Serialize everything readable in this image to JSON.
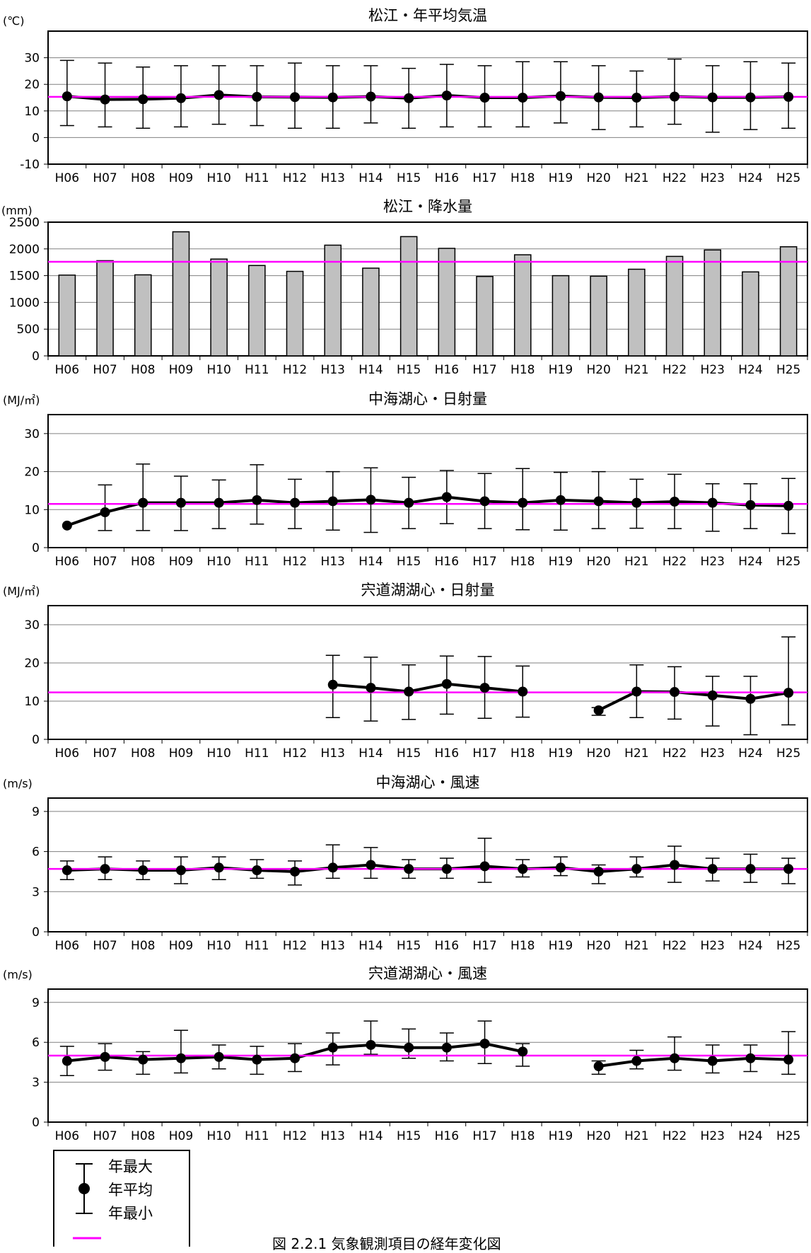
{
  "colors": {
    "reference_line": "#ff00ff",
    "bar_fill": "#c0c0c0",
    "series": "#000000",
    "grid": "#808080"
  },
  "legend": {
    "max_label": "年最大",
    "mean_label": "年平均",
    "min_label": "年最小"
  },
  "caption": {
    "text": "図 2.2.1 気象観測項目の経年変化図"
  },
  "chart_data": [
    {
      "type": "line",
      "title": "松江・年平均気温",
      "unit": "(℃)",
      "ylim": [
        -10,
        40
      ],
      "yticks": [
        -10,
        0,
        10,
        20,
        30
      ],
      "grid": true,
      "categories": [
        "H06",
        "H07",
        "H08",
        "H09",
        "H10",
        "H11",
        "H12",
        "H13",
        "H14",
        "H15",
        "H16",
        "H17",
        "H18",
        "H19",
        "H20",
        "H21",
        "H22",
        "H23",
        "H24",
        "H25"
      ],
      "mean": [
        15.5,
        14.3,
        14.4,
        14.8,
        16.0,
        15.3,
        15.2,
        15.1,
        15.4,
        14.8,
        15.8,
        15.0,
        15.0,
        15.6,
        15.1,
        15.0,
        15.4,
        15.1,
        15.1,
        15.3
      ],
      "max": [
        29,
        28,
        26.5,
        27,
        27,
        27,
        28,
        27,
        27,
        26,
        27.5,
        27,
        28.5,
        28.5,
        27,
        25,
        29.5,
        27,
        28.5,
        28
      ],
      "min": [
        4.5,
        4,
        3.5,
        4,
        5,
        4.5,
        3.5,
        3.5,
        5.5,
        3.5,
        4,
        4,
        4,
        5.5,
        3,
        4,
        5,
        2,
        3,
        3.5
      ],
      "reference": 15.3
    },
    {
      "type": "bar",
      "title": "松江・降水量",
      "unit": "(mm)",
      "ylim": [
        0,
        2500
      ],
      "yticks": [
        0,
        500,
        1000,
        1500,
        2000,
        2500
      ],
      "grid": true,
      "categories": [
        "H06",
        "H07",
        "H08",
        "H09",
        "H10",
        "H11",
        "H12",
        "H13",
        "H14",
        "H15",
        "H16",
        "H17",
        "H18",
        "H19",
        "H20",
        "H21",
        "H22",
        "H23",
        "H24",
        "H25"
      ],
      "values": [
        1510,
        1780,
        1515,
        2320,
        1810,
        1690,
        1580,
        2070,
        1640,
        2230,
        2010,
        1485,
        1890,
        1500,
        1490,
        1620,
        1860,
        1980,
        1570,
        2040
      ],
      "reference": 1760
    },
    {
      "type": "line",
      "title": "中海湖心・日射量",
      "unit": "(MJ/㎡)",
      "ylim": [
        0,
        35
      ],
      "yticks": [
        0,
        10,
        20,
        30
      ],
      "grid": true,
      "categories": [
        "H06",
        "H07",
        "H08",
        "H09",
        "H10",
        "H11",
        "H12",
        "H13",
        "H14",
        "H15",
        "H16",
        "H17",
        "H18",
        "H19",
        "H20",
        "H21",
        "H22",
        "H23",
        "H24",
        "H25"
      ],
      "mean": [
        5.8,
        9.3,
        11.8,
        11.8,
        11.8,
        12.5,
        11.8,
        12.2,
        12.6,
        11.8,
        13.3,
        12.2,
        11.8,
        12.5,
        12.2,
        11.8,
        12.1,
        11.8,
        11.2,
        11.0
      ],
      "max": [
        null,
        16.5,
        22,
        18.8,
        17.8,
        21.8,
        18,
        20,
        21,
        18.5,
        20.3,
        19.5,
        20.8,
        19.8,
        20,
        18,
        19.3,
        16.8,
        16.8,
        18.2
      ],
      "min": [
        null,
        4.5,
        4.5,
        4.5,
        5,
        6.2,
        5,
        4.6,
        4,
        5,
        6.3,
        5,
        4.7,
        4.6,
        5,
        5.1,
        5,
        4.3,
        5,
        3.7
      ],
      "reference": 11.5
    },
    {
      "type": "line",
      "title": "宍道湖湖心・日射量",
      "unit": "(MJ/㎡)",
      "ylim": [
        0,
        35
      ],
      "yticks": [
        0,
        10,
        20,
        30
      ],
      "grid": true,
      "categories": [
        "H06",
        "H07",
        "H08",
        "H09",
        "H10",
        "H11",
        "H12",
        "H13",
        "H14",
        "H15",
        "H16",
        "H17",
        "H18",
        "H19",
        "H20",
        "H21",
        "H22",
        "H23",
        "H24",
        "H25"
      ],
      "mean": [
        null,
        null,
        null,
        null,
        null,
        null,
        null,
        14.3,
        13.5,
        12.5,
        14.5,
        13.5,
        12.5,
        null,
        7.6,
        12.5,
        12.4,
        11.5,
        10.6,
        12.2
      ],
      "max": [
        null,
        null,
        null,
        null,
        null,
        null,
        null,
        22,
        21.5,
        19.5,
        21.8,
        21.7,
        19.2,
        null,
        8.3,
        19.5,
        19,
        16.5,
        16.5,
        26.8
      ],
      "min": [
        null,
        null,
        null,
        null,
        null,
        null,
        null,
        5.7,
        4.8,
        5.2,
        6.6,
        5.5,
        5.8,
        null,
        6.3,
        5.7,
        5.3,
        3.5,
        1.2,
        3.8
      ],
      "reference": 12.3
    },
    {
      "type": "line",
      "title": "中海湖心・風速",
      "unit": "(m/s)",
      "ylim": [
        0,
        10
      ],
      "yticks": [
        0,
        3,
        6,
        9
      ],
      "grid": true,
      "categories": [
        "H06",
        "H07",
        "H08",
        "H09",
        "H10",
        "H11",
        "H12",
        "H13",
        "H14",
        "H15",
        "H16",
        "H17",
        "H18",
        "H19",
        "H20",
        "H21",
        "H22",
        "H23",
        "H24",
        "H25"
      ],
      "mean": [
        4.6,
        4.7,
        4.6,
        4.6,
        4.8,
        4.6,
        4.5,
        4.8,
        5.0,
        4.7,
        4.7,
        4.9,
        4.7,
        4.8,
        4.5,
        4.7,
        5.0,
        4.7,
        4.7,
        4.7
      ],
      "max": [
        5.3,
        5.6,
        5.3,
        5.6,
        5.6,
        5.4,
        5.3,
        6.5,
        6.3,
        5.4,
        5.5,
        7.0,
        5.4,
        5.6,
        5.0,
        5.6,
        6.4,
        5.5,
        5.8,
        5.5
      ],
      "min": [
        3.9,
        3.9,
        3.9,
        3.6,
        3.9,
        4.0,
        3.5,
        4.0,
        4.0,
        4.0,
        4.0,
        3.7,
        4.1,
        4.2,
        3.6,
        4.1,
        3.7,
        3.8,
        3.7,
        3.6
      ],
      "reference": 4.7
    },
    {
      "type": "line",
      "title": "宍道湖湖心・風速",
      "unit": "(m/s)",
      "ylim": [
        0,
        10
      ],
      "yticks": [
        0,
        3,
        6,
        9
      ],
      "grid": true,
      "categories": [
        "H06",
        "H07",
        "H08",
        "H09",
        "H10",
        "H11",
        "H12",
        "H13",
        "H14",
        "H15",
        "H16",
        "H17",
        "H18",
        "H19",
        "H20",
        "H21",
        "H22",
        "H23",
        "H24",
        "H25"
      ],
      "mean": [
        4.6,
        4.9,
        4.7,
        4.8,
        4.9,
        4.7,
        4.8,
        5.6,
        5.8,
        5.6,
        5.6,
        5.9,
        5.3,
        null,
        4.2,
        4.6,
        4.8,
        4.6,
        4.8,
        4.7
      ],
      "max": [
        5.7,
        5.9,
        5.3,
        6.9,
        5.8,
        5.7,
        5.9,
        6.7,
        7.6,
        7.0,
        6.7,
        7.6,
        5.9,
        null,
        4.6,
        5.4,
        6.4,
        5.8,
        5.8,
        6.8
      ],
      "min": [
        3.5,
        3.9,
        3.6,
        3.7,
        4.0,
        3.6,
        3.8,
        4.3,
        5.1,
        4.8,
        4.6,
        4.4,
        4.2,
        null,
        3.6,
        4.0,
        3.9,
        3.7,
        3.8,
        3.6
      ],
      "reference": 5.0
    }
  ]
}
